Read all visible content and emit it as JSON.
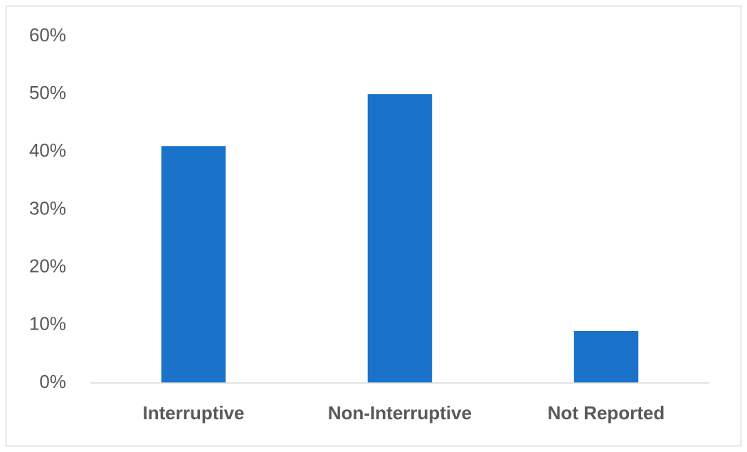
{
  "chart_data": {
    "type": "bar",
    "categories": [
      "Interruptive",
      "Non-Interruptive",
      "Not Reported"
    ],
    "values": [
      41,
      50,
      9
    ],
    "color": "#1a73c8",
    "ylim": [
      0,
      60
    ],
    "yticks": [
      {
        "value": 0,
        "label": "0%"
      },
      {
        "value": 10,
        "label": "10%"
      },
      {
        "value": 20,
        "label": "20%"
      },
      {
        "value": 30,
        "label": "30%"
      },
      {
        "value": 40,
        "label": "40%"
      },
      {
        "value": 50,
        "label": "50%"
      },
      {
        "value": 60,
        "label": "60%"
      }
    ],
    "grid": false
  }
}
